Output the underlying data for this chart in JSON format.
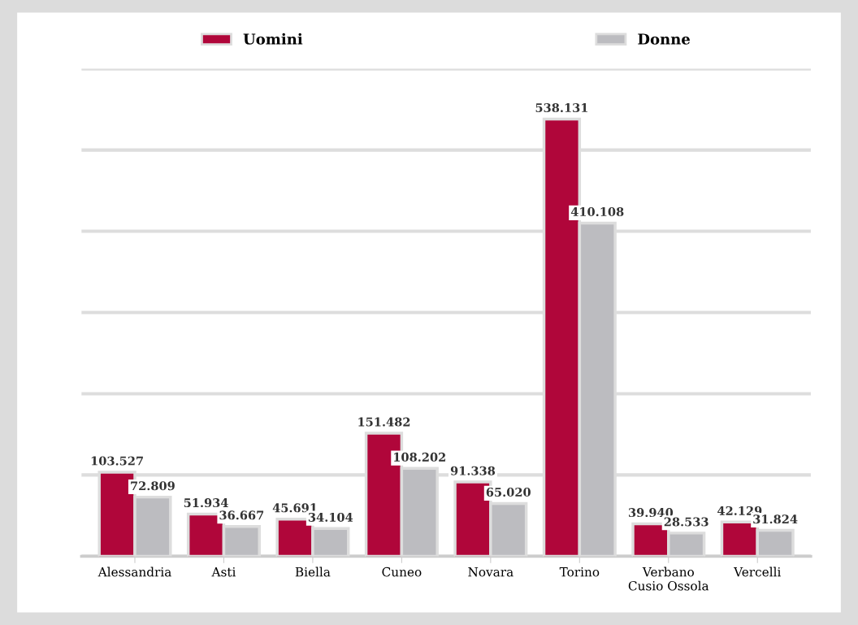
{
  "chart_data": {
    "type": "bar",
    "categories": [
      "Alessandria",
      "Asti",
      "Biella",
      "Cuneo",
      "Novara",
      "Torino",
      "Verbano\nCusio Ossola",
      "Vercelli"
    ],
    "series": [
      {
        "name": "Uomini",
        "color": "#b0063a",
        "values": [
          103527,
          51934,
          45691,
          151482,
          91338,
          538131,
          39940,
          42129
        ],
        "value_labels": [
          "103.527",
          "51.934",
          "45.691",
          "151.482",
          "91.338",
          "538.131",
          "39.940",
          "42.129"
        ]
      },
      {
        "name": "Donne",
        "color": "#bcbcc0",
        "values": [
          72809,
          36667,
          34104,
          108202,
          65020,
          410108,
          28533,
          31824
        ],
        "value_labels": [
          "72.809",
          "36.667",
          "34.104",
          "108.202",
          "65.020",
          "410.108",
          "28.533",
          "31.824"
        ]
      }
    ],
    "ylim": [
      0,
      600000
    ],
    "yticks": [
      {
        "value": 0,
        "label": null
      },
      {
        "value": 100000,
        "label": null
      },
      {
        "value": 200000,
        "label": null
      },
      {
        "value": 300000,
        "label": null
      },
      {
        "value": 400000,
        "label": null
      },
      {
        "value": 500000,
        "label": null
      },
      {
        "value": 600000,
        "label": null
      }
    ],
    "tick_labels": "x",
    "grid": "y",
    "legend": "top"
  }
}
